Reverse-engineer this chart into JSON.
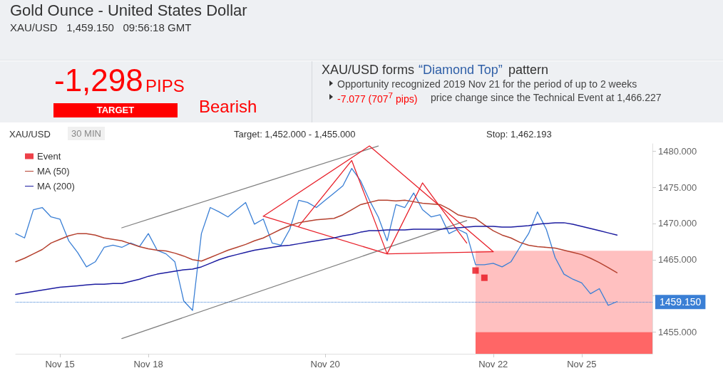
{
  "chart_data": {
    "type": "line",
    "title": "Gold Ounce - United States Dollar",
    "subtitle": "XAU/USD   1,459.150   09:56:18 GMT",
    "annotations": [
      "-1,298",
      "PIPS",
      "TARGET",
      "Bearish",
      "XAU/USD forms",
      "“Diamond Top”",
      "pattern",
      "Opportunity recognized 2019 Nov 21 for the period of up to 2 weeks",
      "-7.077 (707$^{7}$ pips)",
      "price change since the Technical Event at 1,466.227",
      "XAU/USD",
      "30 MIN",
      "Target: 1,452.000 - 1,455.000",
      "Stop: 1,462.193"
    ],
    "categories": [
      null,
      null,
      null,
      null,
      null,
      "Nov 15",
      null,
      null,
      null,
      null,
      null,
      null,
      null,
      null,
      null,
      "Nov 18",
      null,
      null,
      null,
      null,
      null,
      null,
      null,
      null,
      null,
      null,
      null,
      null,
      null,
      null,
      null,
      null,
      null,
      null,
      null,
      "Nov 20",
      null,
      null,
      null,
      null,
      null,
      null,
      null,
      null,
      null,
      null,
      null,
      null,
      null,
      null,
      null,
      null,
      null,
      null,
      "Nov 22",
      null,
      null,
      null,
      null,
      null,
      null,
      null,
      null,
      null,
      "Nov 25",
      null,
      null,
      null,
      null,
      null,
      null,
      null,
      null
    ],
    "ylim": [
      1452,
      1481
    ],
    "yticks": [
      {
        "value": 1455,
        "label": "1455.000"
      },
      {
        "value": 1460,
        "label": null
      },
      {
        "value": 1465,
        "label": "1465.000"
      },
      {
        "value": 1470,
        "label": "1470.000"
      },
      {
        "value": 1475,
        "label": "1475.000"
      },
      {
        "value": 1480,
        "label": "1480.000"
      }
    ],
    "grid": false,
    "legend": "top left",
    "marker": "none",
    "line_style": "solid",
    "bands": [
      {
        "axis": "y",
        "from": 1455,
        "to": 1466.227,
        "color": "#ffc0c0"
      },
      {
        "axis": "y",
        "from": 1452,
        "to": 1455,
        "color": "#ff6666"
      }
    ],
    "ref_lines": [
      {
        "axis": "y",
        "value": 1459.15,
        "label": "1459.150",
        "color": "#3a7fd5",
        "line_style": "dotted"
      }
    ],
    "series": [
      {
        "color": "#3a7fd5",
        "values": [
          1468.6,
          1468,
          1471.9,
          1472.2,
          1470.9,
          1470.6,
          1467.6,
          1466,
          1464,
          1464.7,
          1466.7,
          1467,
          1466.7,
          1467.3,
          1466.8,
          1468.6,
          1466.3,
          1465.8,
          1464.7,
          1459.3,
          1458,
          1468.6,
          1472.2,
          1471.6,
          1470.9,
          1471.9,
          1472.9,
          1469.9,
          1470.6,
          1467.3,
          1467,
          1469.2,
          1473.2,
          1472.9,
          1472.2,
          1473.2,
          1474.2,
          1475.2,
          1477.6,
          1475.9,
          1473.2,
          1470.9,
          1467.6,
          1472.6,
          1472.2,
          1474.2,
          1471.9,
          1470.9,
          1471.2,
          1468.6,
          1469.2,
          1468.6,
          1464.3,
          1464.3,
          1464.5,
          1464,
          1464.7,
          1466.7,
          1468.6,
          1471.6,
          1469.2,
          1465.3,
          1463,
          1462.3,
          1461.8,
          1460.3,
          1461,
          1458.7,
          1459.2,
          null,
          null,
          null,
          null
        ]
      },
      {
        "type": "scatter",
        "name": "Event",
        "color": "#e8101a",
        "marker": "square",
        "values": [
          null,
          null,
          null,
          null,
          null,
          null,
          null,
          null,
          null,
          null,
          null,
          null,
          null,
          null,
          null,
          null,
          null,
          null,
          null,
          null,
          null,
          null,
          null,
          null,
          null,
          null,
          null,
          null,
          null,
          null,
          null,
          null,
          null,
          null,
          null,
          null,
          null,
          null,
          null,
          null,
          null,
          null,
          null,
          null,
          null,
          null,
          null,
          null,
          null,
          null,
          null,
          null,
          1463.5,
          1462.5,
          null,
          null,
          null,
          null,
          null,
          null,
          null,
          null,
          null,
          null,
          null,
          null,
          null,
          null,
          null,
          null,
          null,
          null,
          null
        ]
      },
      {
        "name": "MA (50)",
        "color": "#b5412f",
        "values": [
          1464.7,
          1465.2,
          1465.8,
          1466.4,
          1467.3,
          1467.8,
          1468.3,
          1468.6,
          1468.6,
          1468.4,
          1468.0,
          1467.8,
          1467.6,
          1467.2,
          1466.8,
          1466.5,
          1466.3,
          1466.2,
          1465.9,
          1465.5,
          1465.0,
          1464.8,
          1465.3,
          1465.8,
          1466.3,
          1466.7,
          1467.1,
          1467.6,
          1468.0,
          1468.6,
          1469.2,
          1469.7,
          1470.1,
          1470.3,
          1470.5,
          1470.6,
          1470.7,
          1471.2,
          1471.9,
          1472.6,
          1472.9,
          1473.2,
          1473.2,
          1473.1,
          1473.2,
          1473.0,
          1472.8,
          1472.7,
          1472.6,
          1472.0,
          1471.2,
          1470.9,
          1470.7,
          1469.8,
          1469.0,
          1468.4,
          1468.0,
          1467.4,
          1467.0,
          1466.8,
          1466.7,
          1466.6,
          1466.3,
          1466.0,
          1465.7,
          1465.2,
          1464.6,
          1463.9,
          1463.2,
          null,
          null,
          null,
          null
        ]
      },
      {
        "name": "MA (200)",
        "color": "#1c1ca0",
        "values": [
          1460.2,
          1460.4,
          1460.6,
          1460.8,
          1461.0,
          1461.2,
          1461.3,
          1461.4,
          1461.5,
          1461.6,
          1461.6,
          1461.7,
          1461.7,
          1462.0,
          1462.3,
          1462.7,
          1463.0,
          1463.2,
          1463.4,
          1463.6,
          1463.7,
          1464.0,
          1464.5,
          1465.0,
          1465.4,
          1465.7,
          1466.0,
          1466.3,
          1466.5,
          1466.7,
          1466.9,
          1467.0,
          1467.2,
          1467.4,
          1467.6,
          1467.8,
          1468.0,
          1468.3,
          1468.5,
          1468.8,
          1469.0,
          1469.0,
          1469.1,
          1469.1,
          1469.1,
          1469.2,
          1469.2,
          1469.2,
          1469.2,
          1469.3,
          1469.4,
          1469.5,
          1469.6,
          1469.6,
          1469.6,
          1469.5,
          1469.5,
          1469.6,
          1469.7,
          1469.9,
          1470.0,
          1470.1,
          1470.1,
          1469.9,
          1469.6,
          1469.3,
          1469.0,
          1468.7,
          1468.4,
          null,
          null,
          null,
          null
        ]
      },
      {
        "color": "#808080",
        "values": [
          null,
          null,
          null,
          null,
          null,
          null,
          null,
          null,
          null,
          null,
          null,
          null,
          1469.4,
          null,
          null,
          null,
          null,
          null,
          null,
          null,
          null,
          null,
          null,
          null,
          null,
          null,
          null,
          null,
          null,
          null,
          null,
          null,
          null,
          null,
          null,
          null,
          null,
          null,
          null,
          null,
          null,
          1480.7,
          null,
          null,
          null,
          null,
          null,
          null,
          null,
          null,
          null,
          null,
          null,
          null,
          null,
          null,
          null,
          null,
          null,
          null,
          null,
          null,
          null,
          null,
          null,
          null,
          null,
          null,
          null,
          null,
          null,
          null,
          null
        ]
      },
      {
        "color": "#808080",
        "values": [
          null,
          null,
          null,
          null,
          null,
          null,
          null,
          null,
          null,
          null,
          null,
          null,
          1454.1,
          null,
          null,
          null,
          null,
          null,
          null,
          null,
          null,
          null,
          null,
          null,
          null,
          null,
          null,
          null,
          null,
          null,
          null,
          null,
          null,
          null,
          null,
          null,
          null,
          null,
          null,
          null,
          null,
          null,
          null,
          null,
          null,
          null,
          null,
          null,
          null,
          null,
          null,
          1470.4,
          null,
          null,
          null,
          null,
          null,
          null,
          null,
          null,
          null,
          null,
          null,
          null,
          null,
          null,
          null,
          null,
          null,
          null,
          null,
          null,
          null
        ]
      },
      {
        "color": "#e8202a",
        "values": [
          null,
          null,
          null,
          null,
          null,
          null,
          null,
          null,
          null,
          null,
          null,
          null,
          null,
          null,
          null,
          null,
          null,
          null,
          null,
          null,
          null,
          null,
          null,
          null,
          null,
          null,
          null,
          null,
          1471.0,
          null,
          null,
          null,
          null,
          null,
          null,
          null,
          null,
          null,
          null,
          null,
          1480.7,
          null,
          null,
          null,
          null,
          null,
          null,
          null,
          null,
          null,
          null,
          null,
          null,
          null,
          1466.1,
          null,
          null,
          null,
          null,
          null,
          null,
          null,
          null,
          null,
          null,
          null,
          null,
          null,
          null,
          null,
          null,
          null,
          null
        ]
      },
      {
        "color": "#e8202a",
        "values": [
          null,
          null,
          null,
          null,
          null,
          null,
          null,
          null,
          null,
          null,
          null,
          null,
          null,
          null,
          null,
          null,
          null,
          null,
          null,
          null,
          null,
          null,
          null,
          null,
          null,
          null,
          null,
          null,
          1471.0,
          null,
          null,
          null,
          null,
          null,
          null,
          null,
          null,
          null,
          null,
          null,
          null,
          null,
          1465.8,
          null,
          null,
          null,
          null,
          null,
          null,
          null,
          null,
          null,
          null,
          null,
          1466.1,
          null,
          null,
          null,
          null,
          null,
          null,
          null,
          null,
          null,
          null,
          null,
          null,
          null,
          null,
          null,
          null,
          null,
          null
        ]
      },
      {
        "color": "#e8202a",
        "values": [
          null,
          null,
          null,
          null,
          null,
          null,
          null,
          null,
          null,
          null,
          null,
          null,
          null,
          null,
          null,
          null,
          null,
          null,
          null,
          null,
          null,
          null,
          null,
          null,
          null,
          null,
          null,
          null,
          null,
          null,
          null,
          null,
          1469.6,
          null,
          null,
          null,
          null,
          null,
          1478.7,
          null,
          null,
          null,
          1465.8,
          null,
          null,
          null,
          1475.6,
          null,
          null,
          null,
          null,
          1467.3,
          null,
          null,
          null,
          null,
          null,
          null,
          null,
          null,
          null,
          null,
          null,
          null,
          null,
          null,
          null,
          null,
          null,
          null,
          null,
          null,
          null
        ]
      }
    ]
  }
}
